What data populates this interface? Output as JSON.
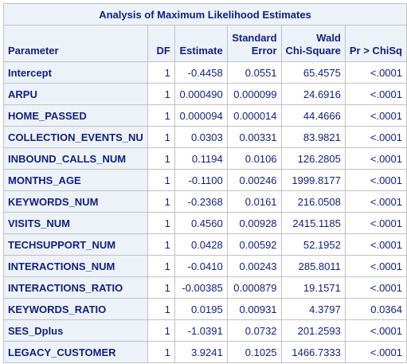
{
  "table": {
    "title": "Analysis of Maximum Likelihood Estimates",
    "headers": {
      "parameter": "Parameter",
      "df": "DF",
      "estimate": "Estimate",
      "stderr_line1": "Standard",
      "stderr_line2": "Error",
      "wald_line1": "Wald",
      "wald_line2": "Chi-Square",
      "prob": "Pr > ChiSq"
    },
    "rows": [
      {
        "parameter": "Intercept",
        "df": "1",
        "estimate": "-0.4458",
        "stderr": "0.0551",
        "wald": "65.4575",
        "prob": "<.0001"
      },
      {
        "parameter": "ARPU",
        "df": "1",
        "estimate": "0.000490",
        "stderr": "0.000099",
        "wald": "24.6916",
        "prob": "<.0001"
      },
      {
        "parameter": "HOME_PASSED",
        "df": "1",
        "estimate": "0.000094",
        "stderr": "0.000014",
        "wald": "44.4666",
        "prob": "<.0001"
      },
      {
        "parameter": "COLLECTION_EVENTS_NU",
        "df": "1",
        "estimate": "0.0303",
        "stderr": "0.00331",
        "wald": "83.9821",
        "prob": "<.0001"
      },
      {
        "parameter": "INBOUND_CALLS_NUM",
        "df": "1",
        "estimate": "0.1194",
        "stderr": "0.0106",
        "wald": "126.2805",
        "prob": "<.0001"
      },
      {
        "parameter": "MONTHS_AGE",
        "df": "1",
        "estimate": "-0.1100",
        "stderr": "0.00246",
        "wald": "1999.8177",
        "prob": "<.0001"
      },
      {
        "parameter": "KEYWORDS_NUM",
        "df": "1",
        "estimate": "-0.2368",
        "stderr": "0.0161",
        "wald": "216.0508",
        "prob": "<.0001"
      },
      {
        "parameter": "VISITS_NUM",
        "df": "1",
        "estimate": "0.4560",
        "stderr": "0.00928",
        "wald": "2415.1185",
        "prob": "<.0001"
      },
      {
        "parameter": "TECHSUPPORT_NUM",
        "df": "1",
        "estimate": "0.0428",
        "stderr": "0.00592",
        "wald": "52.1952",
        "prob": "<.0001"
      },
      {
        "parameter": "INTERACTIONS_NUM",
        "df": "1",
        "estimate": "-0.0410",
        "stderr": "0.00243",
        "wald": "285.8011",
        "prob": "<.0001"
      },
      {
        "parameter": "INTERACTIONS_RATIO",
        "df": "1",
        "estimate": "-0.00385",
        "stderr": "0.000879",
        "wald": "19.1571",
        "prob": "<.0001"
      },
      {
        "parameter": "KEYWORDS_RATIO",
        "df": "1",
        "estimate": "0.0195",
        "stderr": "0.00931",
        "wald": "4.3797",
        "prob": "0.0364"
      },
      {
        "parameter": "SES_Dplus",
        "df": "1",
        "estimate": "-1.0391",
        "stderr": "0.0732",
        "wald": "201.2593",
        "prob": "<.0001"
      },
      {
        "parameter": "LEGACY_CUSTOMER",
        "df": "1",
        "estimate": "3.9241",
        "stderr": "0.1025",
        "wald": "1466.7333",
        "prob": "<.0001"
      }
    ]
  }
}
